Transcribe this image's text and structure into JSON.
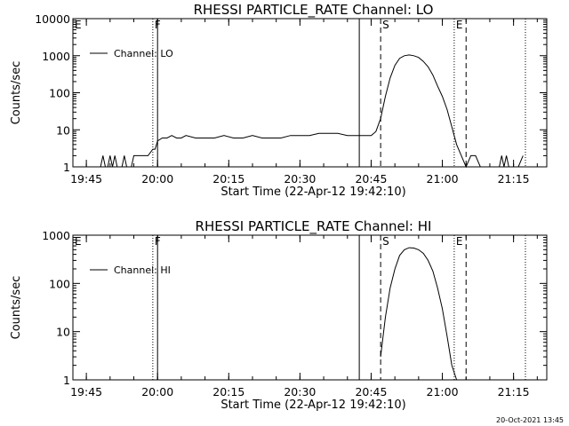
{
  "footer": {
    "timestamp": "20-Oct-2021 13:45"
  },
  "chart_data": [
    {
      "type": "line",
      "title": "RHESSI PARTICLE_RATE Channel: LO",
      "xlabel": "Start Time (22-Apr-12 19:42:10)",
      "ylabel": "Counts/sec",
      "yscale": "log",
      "xlim": [
        "19:42:10",
        "21:22:00"
      ],
      "ylim": [
        1,
        10000
      ],
      "ytick_labels": [
        "1",
        "10",
        "100",
        "1000",
        "10000"
      ],
      "xtick_labels": [
        "19:45",
        "20:00",
        "20:15",
        "20:30",
        "20:45",
        "21:00",
        "21:15"
      ],
      "legend": {
        "position": "top-left",
        "entries": [
          "Channel: LO"
        ]
      },
      "markers": [
        {
          "label": "E",
          "time": "19:42:10",
          "style": "solid"
        },
        {
          "label": "F",
          "time": "19:59:00",
          "style": "dotted"
        },
        {
          "label": "",
          "time": "20:00:00",
          "style": "solid"
        },
        {
          "label": "",
          "time": "20:42:30",
          "style": "solid"
        },
        {
          "label": "S",
          "time": "20:47:00",
          "style": "dashed"
        },
        {
          "label": "E",
          "time": "21:02:30",
          "style": "dotted"
        },
        {
          "label": "",
          "time": "21:05:00",
          "style": "dashed"
        },
        {
          "label": "",
          "time": "21:17:30",
          "style": "dotted"
        }
      ],
      "series": [
        {
          "name": "Channel: LO",
          "x": [
            "19:48:00",
            "19:48:30",
            "19:49:00",
            "19:49:30",
            "19:50:00",
            "19:50:30",
            "19:51:00",
            "19:51:30",
            "19:52:00",
            "19:52:30",
            "19:53:00",
            "19:53:30",
            "19:54:00",
            "19:54:30",
            "19:55:00",
            "19:56:00",
            "19:57:00",
            "19:58:00",
            "19:59:00",
            "19:59:30",
            "20:00:00",
            "20:01:00",
            "20:02:00",
            "20:03:00",
            "20:04:00",
            "20:05:00",
            "20:06:00",
            "20:08:00",
            "20:10:00",
            "20:12:00",
            "20:14:00",
            "20:16:00",
            "20:18:00",
            "20:20:00",
            "20:22:00",
            "20:24:00",
            "20:26:00",
            "20:28:00",
            "20:30:00",
            "20:32:00",
            "20:34:00",
            "20:36:00",
            "20:38:00",
            "20:40:00",
            "20:42:00",
            "20:43:00",
            "20:44:00",
            "20:45:00",
            "20:46:00",
            "20:47:00",
            "20:48:00",
            "20:49:00",
            "20:50:00",
            "20:51:00",
            "20:52:00",
            "20:53:00",
            "20:54:00",
            "20:55:00",
            "20:56:00",
            "20:57:00",
            "20:58:00",
            "20:59:00",
            "21:00:00",
            "21:01:00",
            "21:02:00",
            "21:03:00",
            "21:04:00",
            "21:05:00",
            "21:06:00",
            "21:07:00",
            "21:08:00",
            "21:09:00",
            "21:10:00",
            "21:11:00",
            "21:12:00",
            "21:12:30",
            "21:13:00",
            "21:13:30",
            "21:14:00",
            "21:16:00",
            "21:17:00"
          ],
          "values": [
            1,
            2,
            1,
            1,
            2,
            1,
            2,
            1,
            1,
            1,
            2,
            1,
            1,
            1,
            2,
            2,
            2,
            2,
            3,
            3,
            5,
            6,
            6,
            7,
            6,
            6,
            7,
            6,
            6,
            6,
            7,
            6,
            6,
            7,
            6,
            6,
            6,
            7,
            7,
            7,
            8,
            8,
            8,
            7,
            7,
            7,
            7,
            7,
            9,
            20,
            80,
            250,
            550,
            850,
            1000,
            1050,
            1000,
            900,
            700,
            500,
            300,
            150,
            80,
            35,
            12,
            4,
            2,
            1,
            2,
            2,
            1,
            1,
            1,
            1,
            1,
            2,
            1,
            2,
            1,
            1,
            2
          ]
        }
      ]
    },
    {
      "type": "line",
      "title": "RHESSI PARTICLE_RATE Channel: HI",
      "xlabel": "Start Time (22-Apr-12 19:42:10)",
      "ylabel": "Counts/sec",
      "yscale": "log",
      "xlim": [
        "19:42:10",
        "21:22:00"
      ],
      "ylim": [
        1,
        1000
      ],
      "ytick_labels": [
        "1",
        "10",
        "100",
        "1000"
      ],
      "xtick_labels": [
        "19:45",
        "20:00",
        "20:15",
        "20:30",
        "20:45",
        "21:00",
        "21:15"
      ],
      "legend": {
        "position": "top-left",
        "entries": [
          "Channel: HI"
        ]
      },
      "markers": [
        {
          "label": "E",
          "time": "19:42:10",
          "style": "solid"
        },
        {
          "label": "F",
          "time": "19:59:00",
          "style": "dotted"
        },
        {
          "label": "",
          "time": "20:00:00",
          "style": "solid"
        },
        {
          "label": "",
          "time": "20:42:30",
          "style": "solid"
        },
        {
          "label": "S",
          "time": "20:47:00",
          "style": "dashed"
        },
        {
          "label": "E",
          "time": "21:02:30",
          "style": "dotted"
        },
        {
          "label": "",
          "time": "21:05:00",
          "style": "dashed"
        },
        {
          "label": "",
          "time": "21:17:30",
          "style": "dotted"
        }
      ],
      "series": [
        {
          "name": "Channel: HI",
          "x": [
            "20:47:00",
            "20:48:00",
            "20:49:00",
            "20:50:00",
            "20:51:00",
            "20:52:00",
            "20:53:00",
            "20:54:00",
            "20:55:00",
            "20:56:00",
            "20:57:00",
            "20:58:00",
            "20:59:00",
            "21:00:00",
            "21:01:00",
            "21:02:00",
            "21:03:00"
          ],
          "values": [
            3,
            20,
            80,
            200,
            380,
            500,
            550,
            540,
            500,
            420,
            300,
            180,
            80,
            30,
            8,
            2,
            1
          ]
        }
      ]
    }
  ]
}
